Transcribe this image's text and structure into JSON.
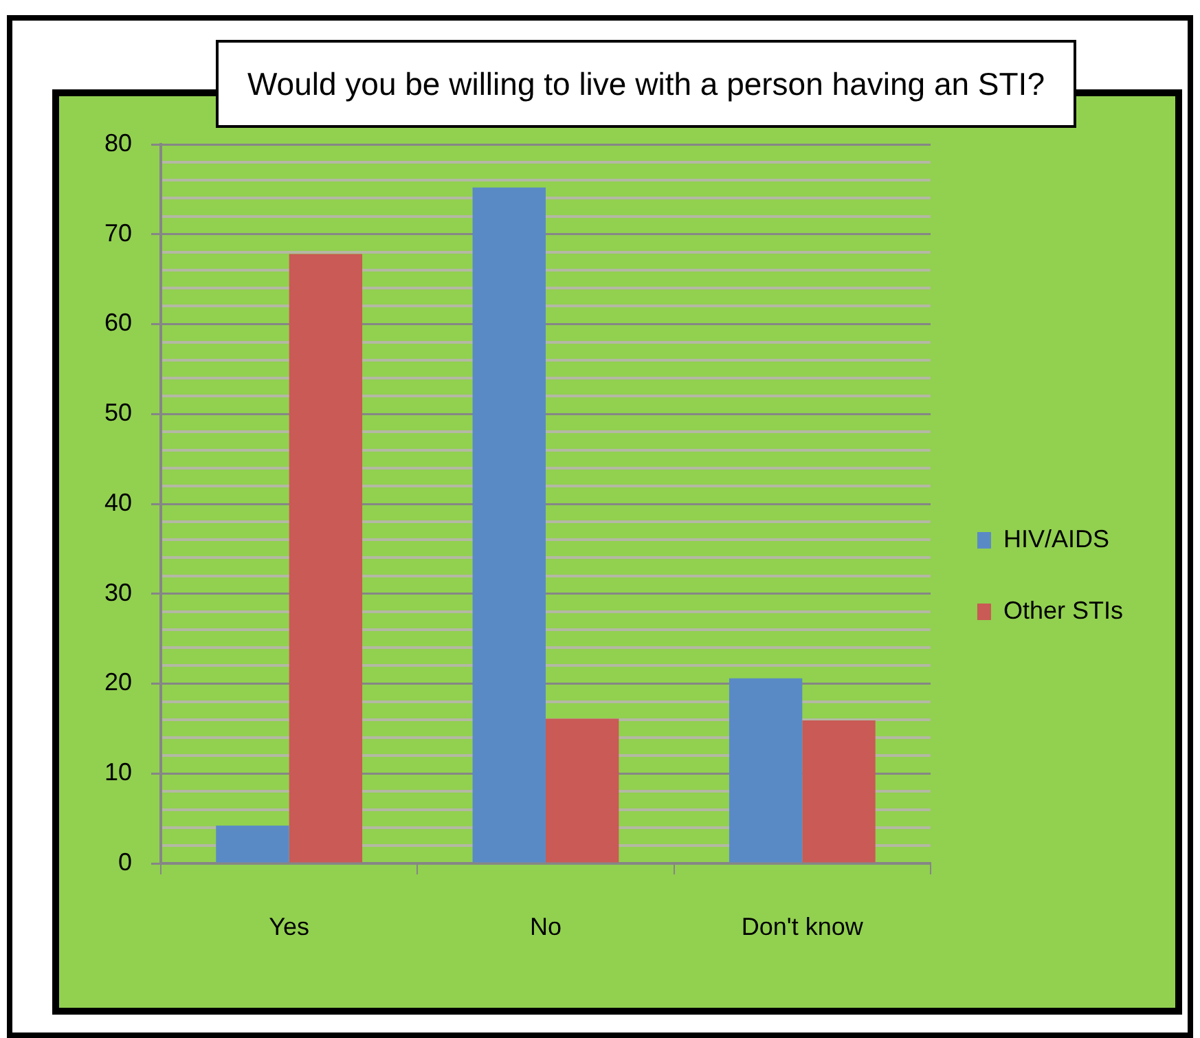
{
  "chart_data": {
    "type": "bar",
    "title": "Would you be willing to live with a person having an STI?",
    "categories": [
      "Yes",
      "No",
      "Don't know"
    ],
    "series": [
      {
        "name": "HIV/AIDS",
        "color": "#5a8ac6",
        "values": [
          4.2,
          75.2,
          20.6
        ]
      },
      {
        "name": "Other STIs",
        "color": "#c95a55",
        "values": [
          67.8,
          16.1,
          15.9
        ]
      }
    ],
    "ylim": [
      0,
      80
    ],
    "yticks": [
      0,
      {
        "value": 2,
        "label": null
      },
      {
        "value": 4,
        "label": null
      },
      {
        "value": 6,
        "label": null
      },
      {
        "value": 8,
        "label": null
      },
      10,
      {
        "value": 12,
        "label": null
      },
      {
        "value": 14,
        "label": null
      },
      {
        "value": 16,
        "label": null
      },
      {
        "value": 18,
        "label": null
      },
      20,
      {
        "value": 22,
        "label": null
      },
      {
        "value": 24,
        "label": null
      },
      {
        "value": 26,
        "label": null
      },
      {
        "value": 28,
        "label": null
      },
      30,
      {
        "value": 32,
        "label": null
      },
      {
        "value": 34,
        "label": null
      },
      {
        "value": 36,
        "label": null
      },
      {
        "value": 38,
        "label": null
      },
      40,
      {
        "value": 42,
        "label": null
      },
      {
        "value": 44,
        "label": null
      },
      {
        "value": 46,
        "label": null
      },
      {
        "value": 48,
        "label": null
      },
      50,
      {
        "value": 52,
        "label": null
      },
      {
        "value": 54,
        "label": null
      },
      {
        "value": 56,
        "label": null
      },
      {
        "value": 58,
        "label": null
      },
      60,
      {
        "value": 62,
        "label": null
      },
      {
        "value": 64,
        "label": null
      },
      {
        "value": 66,
        "label": null
      },
      {
        "value": 68,
        "label": null
      },
      70,
      {
        "value": 72,
        "label": null
      },
      {
        "value": 74,
        "label": null
      },
      {
        "value": 76,
        "label": null
      },
      {
        "value": 78,
        "label": null
      },
      80
    ],
    "grid": "y",
    "legend": "right"
  }
}
